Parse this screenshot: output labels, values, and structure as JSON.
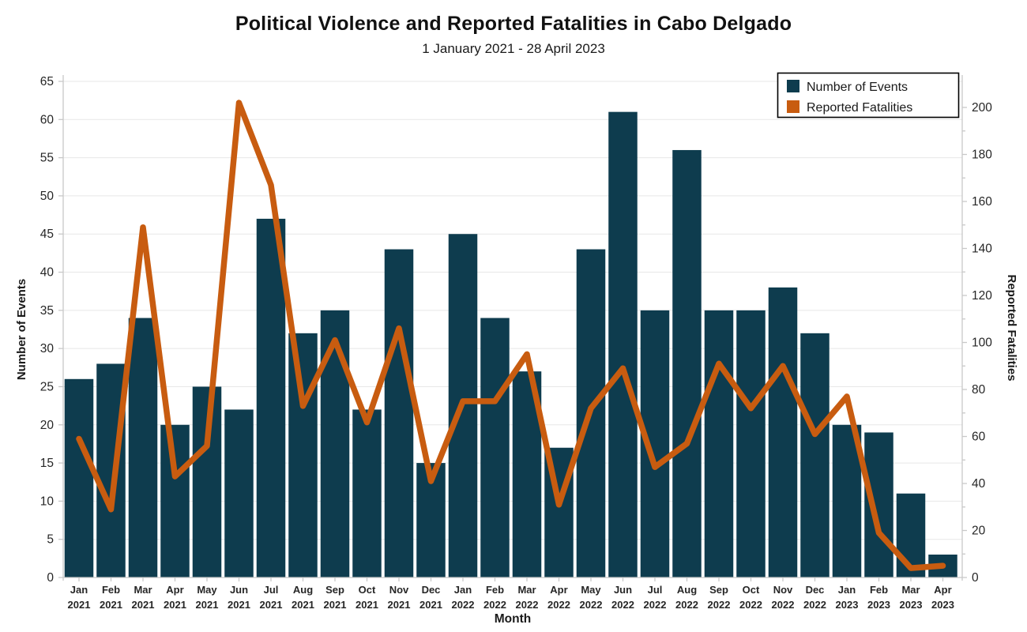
{
  "header": {
    "title": "Political Violence and Reported Fatalities in Cabo Delgado",
    "subtitle": "1 January 2021 - 28 April 2023"
  },
  "colors": {
    "bar": "#0e3c4e",
    "line": "#c85c10",
    "grid": "#e7e7e7",
    "spine": "#c8c8c8",
    "text": "#1a1a1a",
    "tick_text": "#262626",
    "legend_border": "#000000",
    "background": "#ffffff"
  },
  "chart_data": {
    "type": "bar",
    "subtype": "bar-and-line-dual-axis",
    "title": "Political Violence and Reported Fatalities in Cabo Delgado",
    "subtitle": "1 January 2021 - 28 April 2023",
    "categories": [
      {
        "month": "Jan",
        "year": "2021"
      },
      {
        "month": "Feb",
        "year": "2021"
      },
      {
        "month": "Mar",
        "year": "2021"
      },
      {
        "month": "Apr",
        "year": "2021"
      },
      {
        "month": "May",
        "year": "2021"
      },
      {
        "month": "Jun",
        "year": "2021"
      },
      {
        "month": "Jul",
        "year": "2021"
      },
      {
        "month": "Aug",
        "year": "2021"
      },
      {
        "month": "Sep",
        "year": "2021"
      },
      {
        "month": "Oct",
        "year": "2021"
      },
      {
        "month": "Nov",
        "year": "2021"
      },
      {
        "month": "Dec",
        "year": "2021"
      },
      {
        "month": "Jan",
        "year": "2022"
      },
      {
        "month": "Feb",
        "year": "2022"
      },
      {
        "month": "Mar",
        "year": "2022"
      },
      {
        "month": "Apr",
        "year": "2022"
      },
      {
        "month": "May",
        "year": "2022"
      },
      {
        "month": "Jun",
        "year": "2022"
      },
      {
        "month": "Jul",
        "year": "2022"
      },
      {
        "month": "Aug",
        "year": "2022"
      },
      {
        "month": "Sep",
        "year": "2022"
      },
      {
        "month": "Oct",
        "year": "2022"
      },
      {
        "month": "Nov",
        "year": "2022"
      },
      {
        "month": "Dec",
        "year": "2022"
      },
      {
        "month": "Jan",
        "year": "2023"
      },
      {
        "month": "Feb",
        "year": "2023"
      },
      {
        "month": "Mar",
        "year": "2023"
      },
      {
        "month": "Apr",
        "year": "2023"
      }
    ],
    "series": [
      {
        "name": "Number of Events",
        "type": "bar",
        "axis": "left",
        "color": "#0e3c4e",
        "values": [
          26,
          28,
          34,
          20,
          25,
          22,
          47,
          32,
          35,
          22,
          43,
          15,
          45,
          34,
          27,
          17,
          43,
          61,
          35,
          56,
          35,
          35,
          38,
          32,
          20,
          19,
          11,
          3
        ]
      },
      {
        "name": "Reported Fatalities",
        "type": "line",
        "axis": "right",
        "color": "#c85c10",
        "values": [
          59,
          29,
          149,
          43,
          56,
          202,
          167,
          73,
          101,
          66,
          106,
          41,
          75,
          75,
          95,
          31,
          72,
          89,
          47,
          57,
          91,
          72,
          90,
          61,
          77,
          19,
          4,
          5
        ]
      }
    ],
    "xlabel": "Month",
    "left_axis": {
      "label": "Number of Events",
      "min": 0,
      "max": 65,
      "tick_step": 5
    },
    "right_axis": {
      "label": "Reported Fatalities",
      "min": 0,
      "max": 200,
      "tick_step": 20,
      "minor_step": 10
    },
    "grid": "horizontal",
    "legend": {
      "position": "top-right",
      "entries": [
        "Number of Events",
        "Reported Fatalities"
      ]
    }
  }
}
